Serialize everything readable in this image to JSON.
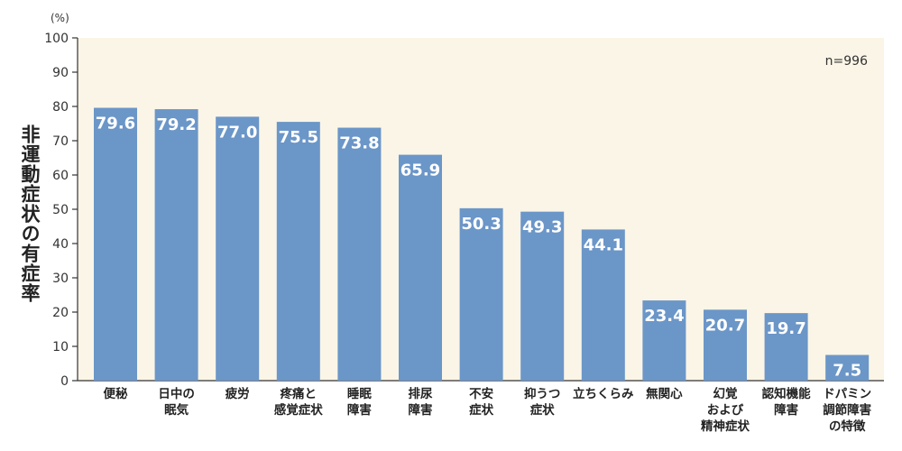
{
  "chart_data": {
    "type": "bar",
    "ylabel": "非運動症状の有症率",
    "yunit": "(%)",
    "ylim": [
      0,
      100
    ],
    "yticks": [
      "0",
      "10",
      "20",
      "30",
      "40",
      "50",
      "60",
      "70",
      "80",
      "90",
      "100"
    ],
    "annotation": "n=996",
    "categories": [
      [
        "便秘"
      ],
      [
        "日中の",
        "眠気"
      ],
      [
        "疲労"
      ],
      [
        "疼痛と",
        "感覚症状"
      ],
      [
        "睡眠",
        "障害"
      ],
      [
        "排尿",
        "障害"
      ],
      [
        "不安",
        "症状"
      ],
      [
        "抑うつ",
        "症状"
      ],
      [
        "立ちくらみ"
      ],
      [
        "無関心"
      ],
      [
        "幻覚",
        "および",
        "精神症状"
      ],
      [
        "認知機能",
        "障害"
      ],
      [
        "ドパミン",
        "調節障害",
        "の特徴"
      ]
    ],
    "values": [
      79.6,
      79.2,
      77.0,
      75.5,
      73.8,
      65.9,
      50.3,
      49.3,
      44.1,
      23.4,
      20.7,
      19.7,
      7.5
    ],
    "value_labels": [
      "79.6",
      "79.2",
      "77.0",
      "75.5",
      "73.8",
      "65.9",
      "50.3",
      "49.3",
      "44.1",
      "23.4",
      "20.7",
      "19.7",
      "7.5"
    ],
    "colors": {
      "bar": "#6b96c8",
      "plot_bg": "#faf5e6"
    }
  }
}
